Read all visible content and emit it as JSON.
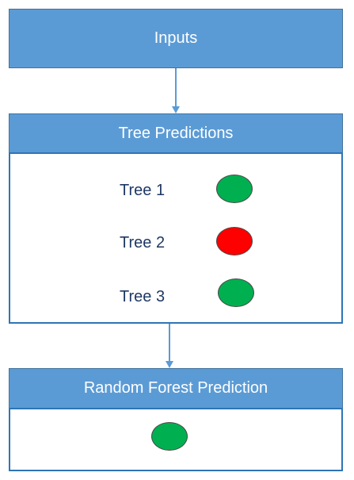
{
  "inputs": {
    "label": "Inputs"
  },
  "tree_predictions": {
    "title": "Tree Predictions",
    "trees": [
      {
        "label": "Tree 1",
        "color": "#00b050"
      },
      {
        "label": "Tree 2",
        "color": "#ff0000"
      },
      {
        "label": "Tree 3",
        "color": "#00b050"
      }
    ]
  },
  "random_forest": {
    "title": "Random Forest Prediction",
    "result_color": "#00b050"
  },
  "colors": {
    "header_fill": "#5b9bd5",
    "body_border": "#2e75b6",
    "arrow": "#5b9bd5"
  }
}
